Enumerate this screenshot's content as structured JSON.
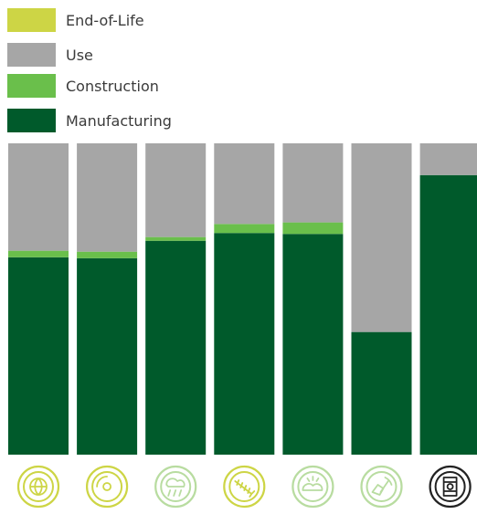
{
  "colors": {
    "end_of_life": "#cdd545",
    "use": "#a6a6a6",
    "construction": "#6abf4b",
    "manufacturing": "#005a2b",
    "icon_ring": "#cdd545",
    "icon_ring_alt": "#b8dca0",
    "icon_ring_last": "#222222"
  },
  "legend": [
    {
      "name": "End-of-Life",
      "color": "#cdd545"
    },
    {
      "name": "Use",
      "color": "#a6a6a6"
    },
    {
      "name": "Construction",
      "color": "#6abf4b"
    },
    {
      "name": "Manufacturing",
      "color": "#005a2b"
    }
  ],
  "chart_data": {
    "type": "bar",
    "stacked": true,
    "normalized_percent": true,
    "ylim": [
      0,
      100
    ],
    "grid": false,
    "legend_position": "top-left",
    "categories": [
      "",
      "",
      "",
      "",
      "",
      "",
      ""
    ],
    "category_icons": [
      "globe-thermometer-icon",
      "ozone-icon",
      "acid-rain-icon",
      "fish-skeleton-icon",
      "smog-no-icon",
      "mineral-pickaxe-icon",
      "oil-barrel-icon"
    ],
    "series": [
      {
        "name": "Manufacturing",
        "color": "#005a2b",
        "values": [
          63.4,
          63.1,
          68.7,
          71.2,
          70.9,
          39.4,
          89.8
        ]
      },
      {
        "name": "Construction",
        "color": "#6abf4b",
        "values": [
          2.1,
          2.1,
          1.2,
          2.9,
          3.7,
          0,
          0
        ]
      },
      {
        "name": "Use",
        "color": "#a6a6a6",
        "values": [
          34.5,
          34.8,
          30.1,
          25.9,
          25.4,
          60.6,
          10.2
        ]
      },
      {
        "name": "End-of-Life",
        "color": "#cdd545",
        "values": [
          0,
          0,
          0,
          0,
          0,
          0,
          0
        ]
      }
    ]
  }
}
